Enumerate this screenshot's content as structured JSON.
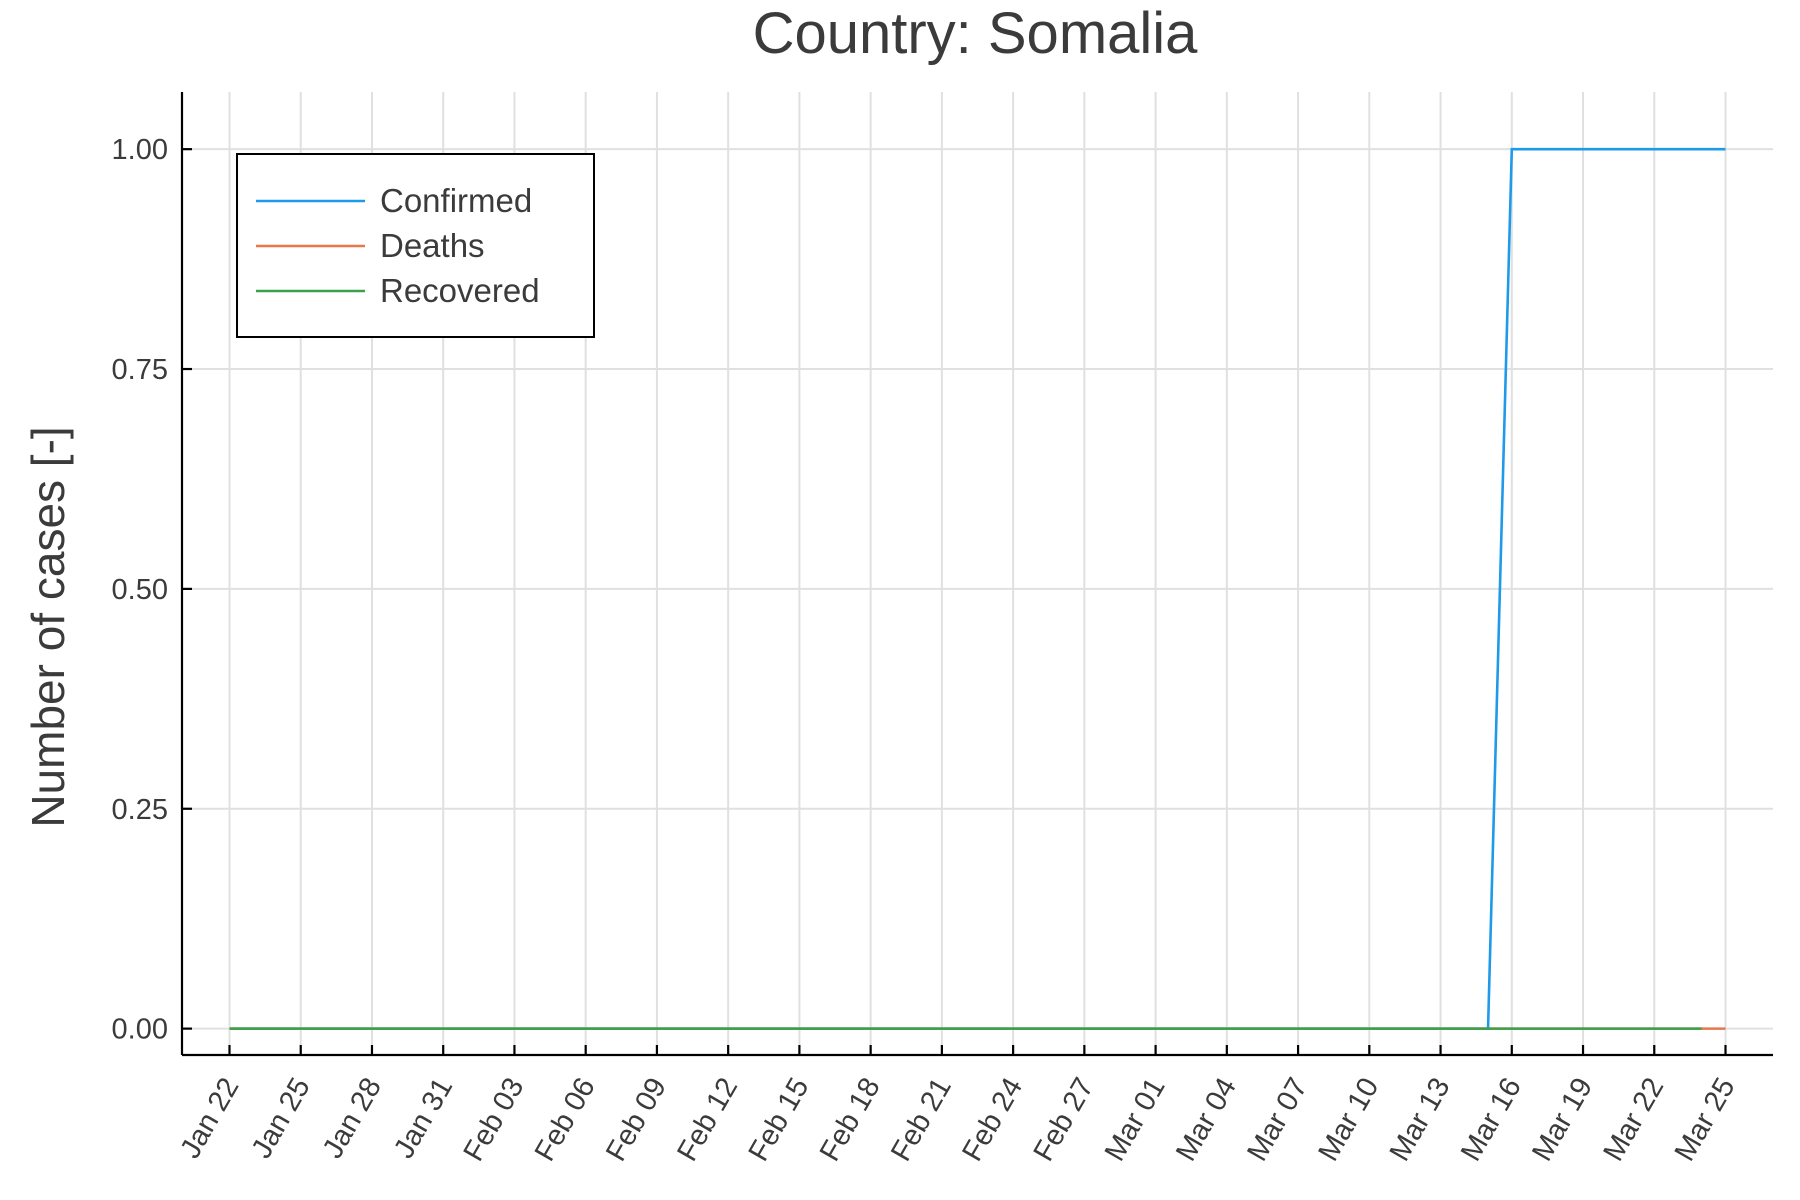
{
  "chart_data": {
    "type": "line",
    "title": "Country: Somalia",
    "xlabel": "",
    "ylabel": "Number of cases [-]",
    "x_ticks": [
      "Jan 22",
      "Jan 25",
      "Jan 28",
      "Jan 31",
      "Feb 03",
      "Feb 06",
      "Feb 09",
      "Feb 12",
      "Feb 15",
      "Feb 18",
      "Feb 21",
      "Feb 24",
      "Feb 27",
      "Mar 01",
      "Mar 04",
      "Mar 07",
      "Mar 10",
      "Mar 13",
      "Mar 16",
      "Mar 19",
      "Mar 22",
      "Mar 25"
    ],
    "y_ticks": [
      "0.00",
      "0.25",
      "0.50",
      "0.75",
      "1.00"
    ],
    "ylim": [
      -0.03,
      1.065
    ],
    "xlim": [
      "2020-01-20",
      "2020-03-27"
    ],
    "grid": true,
    "legend_position": "top-left",
    "series": [
      {
        "name": "Confirmed",
        "color": "#1f9ae8",
        "points": [
          [
            "2020-01-22",
            0
          ],
          [
            "2020-03-15",
            0
          ],
          [
            "2020-03-16",
            1
          ],
          [
            "2020-03-25",
            1
          ]
        ]
      },
      {
        "name": "Deaths",
        "color": "#e8774a",
        "points": [
          [
            "2020-01-22",
            0
          ],
          [
            "2020-03-25",
            0
          ]
        ]
      },
      {
        "name": "Recovered",
        "color": "#3aa049",
        "points": [
          [
            "2020-01-22",
            0
          ],
          [
            "2020-03-24",
            0
          ]
        ]
      }
    ]
  }
}
